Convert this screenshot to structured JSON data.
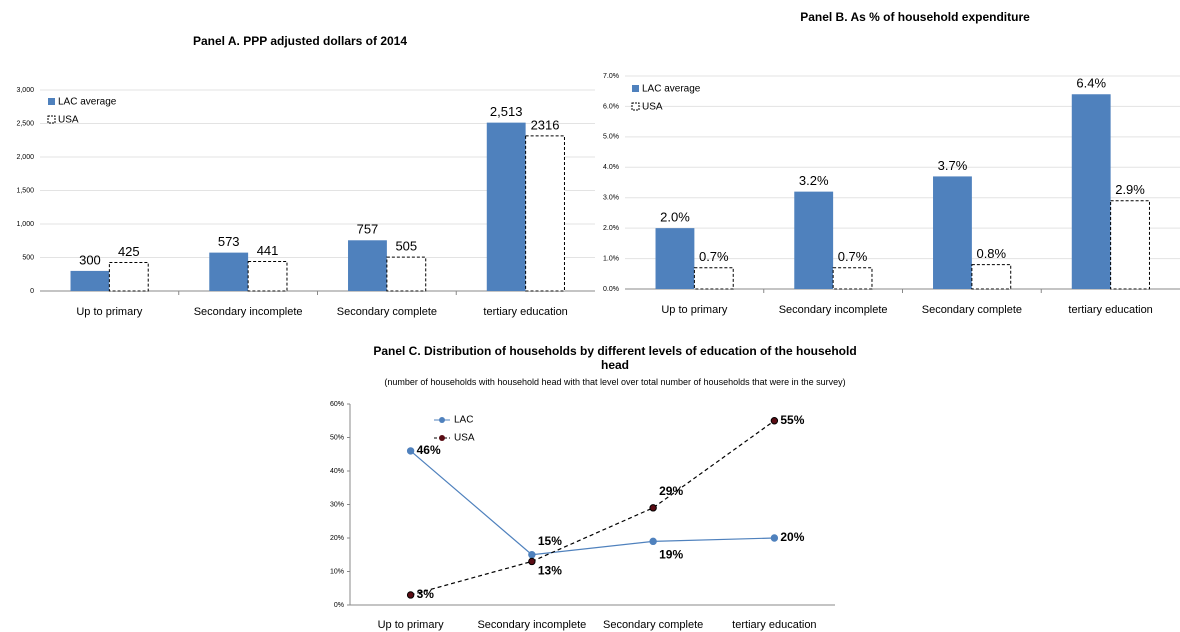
{
  "chart_data": [
    {
      "type": "bar",
      "title": "Panel A. PPP adjusted dollars of 2014",
      "categories": [
        "Up to primary",
        "Secondary incomplete",
        "Secondary complete",
        "tertiary education"
      ],
      "series": [
        {
          "name": "LAC average",
          "color": "#4f81bd",
          "values": [
            300,
            573,
            757,
            2513
          ],
          "value_labels": [
            "300",
            "573",
            "757",
            "2,513"
          ]
        },
        {
          "name": "USA",
          "color": "#ffffff",
          "border": "#000000",
          "line_style": "dashed",
          "values": [
            425,
            441,
            505,
            2316
          ]
        }
      ],
      "ylim": [
        0,
        3000
      ],
      "yticks": [
        0,
        500,
        {
          "value": 1000,
          "label": "1,000"
        },
        {
          "value": 1500,
          "label": "1,500"
        },
        {
          "value": 2000,
          "label": "2,000"
        },
        {
          "value": 2500,
          "label": "2,500"
        },
        {
          "value": 3000,
          "label": "3,000"
        }
      ],
      "grid": true,
      "legend": "upper left"
    },
    {
      "type": "bar",
      "title": "Panel B. As % of household expenditure",
      "categories": [
        "Up to primary",
        "Secondary incomplete",
        "Secondary complete",
        "tertiary education"
      ],
      "series": [
        {
          "name": "LAC average",
          "color": "#4f81bd",
          "values": [
            2.0,
            3.2,
            3.7,
            6.4
          ],
          "value_labels": [
            "2.0%",
            "3.2%",
            "3.7%",
            "6.4%"
          ]
        },
        {
          "name": "USA",
          "color": "#ffffff",
          "border": "#000000",
          "line_style": "dashed",
          "values": [
            0.7,
            0.7,
            0.8,
            2.9
          ],
          "value_labels": [
            "0.7%",
            "0.7%",
            "0.8%",
            "2.9%"
          ]
        }
      ],
      "ylim": [
        0,
        7
      ],
      "yticks": [
        {
          "value": 0,
          "label": "0.0%"
        },
        {
          "value": 1,
          "label": "1.0%"
        },
        {
          "value": 2,
          "label": "2.0%"
        },
        {
          "value": 3,
          "label": "3.0%"
        },
        {
          "value": 4,
          "label": "4.0%"
        },
        {
          "value": 5,
          "label": "5.0%"
        },
        {
          "value": 6,
          "label": "6.0%"
        },
        {
          "value": 7,
          "label": "7.0%"
        }
      ],
      "grid": true,
      "legend": "upper left"
    },
    {
      "type": "line",
      "title": "Panel C. Distribution of households by different levels of education of the household head",
      "subtitle": "(number of households with household head with that level over total number of households that were in the survey)",
      "categories": [
        "Up to primary",
        "Secondary incomplete",
        "Secondary complete",
        "tertiary education"
      ],
      "series": [
        {
          "name": "LAC",
          "color": "#4f81bd",
          "line_style": "solid",
          "values": [
            46,
            15,
            19,
            20
          ],
          "value_labels": [
            "46%",
            "15%",
            "19%",
            "20%"
          ]
        },
        {
          "name": "USA",
          "color": "#000000",
          "line_style": "dashed",
          "values": [
            3,
            13,
            29,
            55
          ],
          "value_labels": [
            "3%",
            "13%",
            "29%",
            "55%"
          ]
        }
      ],
      "ylim": [
        0,
        60
      ],
      "yticks": [
        {
          "value": 0,
          "label": "0%"
        },
        {
          "value": 10,
          "label": "10%"
        },
        {
          "value": 20,
          "label": "20%"
        },
        {
          "value": 30,
          "label": "30%"
        },
        {
          "value": 40,
          "label": "40%"
        },
        {
          "value": 50,
          "label": "50%"
        },
        {
          "value": 60,
          "label": "60%"
        }
      ],
      "grid": false,
      "legend": "upper left"
    }
  ]
}
